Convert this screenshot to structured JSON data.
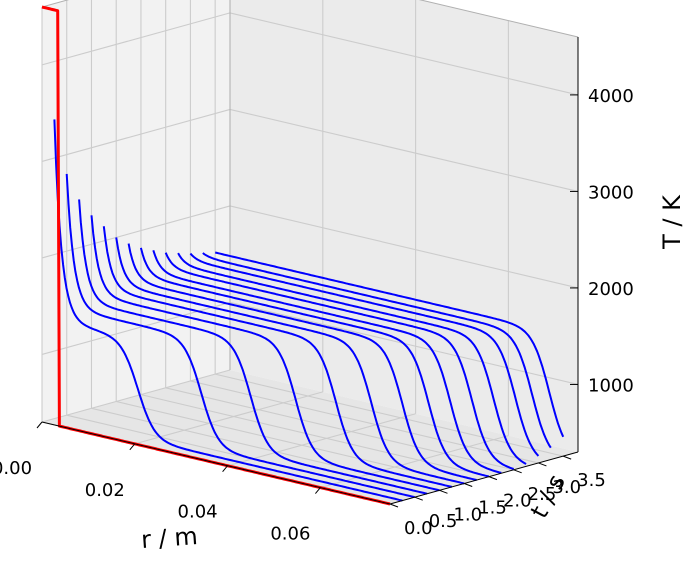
{
  "chart_data": {
    "type": "line",
    "projection": "3d",
    "xlabel": "r / m",
    "ylabel": "t / s",
    "zlabel": "T / K",
    "xlim": [
      0.0,
      0.075
    ],
    "ylim": [
      0.0,
      3.8
    ],
    "zlim": [
      300,
      4600
    ],
    "x_ticks": [
      "0.00",
      "0.02",
      "0.04",
      "0.06"
    ],
    "y_ticks": [
      "0.0",
      "0.5",
      "1.0",
      "1.5",
      "2.0",
      "2.5",
      "3.0",
      "3.5"
    ],
    "z_ticks": [
      "1000",
      "2000",
      "3000",
      "4000"
    ],
    "grid": true,
    "colors": {
      "profile": "#0000ff",
      "initial_profile": "#ff0000",
      "pane": "#f2f2f2",
      "grid": "#cccccc"
    },
    "time_slices": [
      0.0,
      0.25,
      0.5,
      0.75,
      1.0,
      1.25,
      1.5,
      1.75,
      2.0,
      2.25,
      2.5,
      2.75,
      3.0,
      3.25,
      3.5
    ],
    "front_positions": [
      0.0,
      0.018,
      0.029,
      0.037,
      0.044,
      0.05,
      0.055,
      0.059,
      0.062,
      0.064,
      0.066,
      0.068,
      0.07,
      0.071,
      0.072
    ],
    "plateau_temperature": [
      300,
      1320,
      1410,
      1450,
      1480,
      1500,
      1510,
      1520,
      1530,
      1530,
      1540,
      1540,
      1550,
      1550,
      1560
    ],
    "peak_temperature": [
      4600,
      3400,
      2800,
      2500,
      2300,
      2150,
      2000,
      1900,
      1820,
      1760,
      1700,
      1660,
      1620,
      1590,
      1560
    ],
    "ambient_temperature": 300
  }
}
